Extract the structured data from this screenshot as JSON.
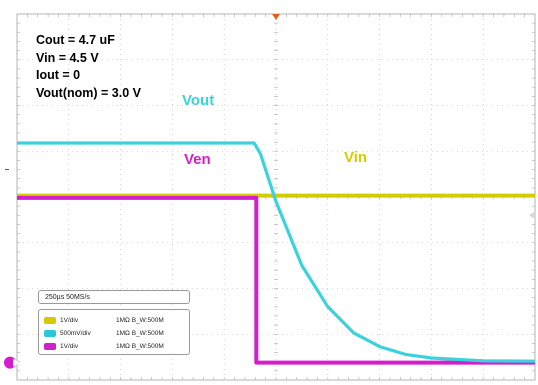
{
  "conditions": {
    "cout": "Cout = 4.7 uF",
    "vin": "Vin = 4.5 V",
    "iout": "Iout = 0",
    "vout_nom": "Vout(nom) = 3.0 V"
  },
  "trace_labels": {
    "vout": "Vout",
    "ven": "Ven",
    "vin": "Vin"
  },
  "timebase": "250µs   50MS/s",
  "channels": [
    {
      "vdiv": "1V/div",
      "impedance": "1MΩ  B_W:500M",
      "color": "#d8c800"
    },
    {
      "vdiv": "500mV/div",
      "impedance": "1MΩ  B_W:500M",
      "color": "#28c8d8"
    },
    {
      "vdiv": "1V/div",
      "impedance": "1MΩ  B_W:500M",
      "color": "#d020c8"
    }
  ],
  "colors": {
    "vout": "#3cd2dc",
    "ven": "#d21ecd",
    "vin": "#d2cc00",
    "grid": "#b4b4b4",
    "trigger_marker": "#e06020"
  },
  "chart_data": {
    "type": "line",
    "title": "",
    "xlabel": "",
    "ylabel": "",
    "xlim": [
      0,
      10
    ],
    "ylim": [
      0,
      8
    ],
    "grid": true,
    "series": [
      {
        "name": "Vout",
        "x": [
          0,
          4.58,
          4.7,
          5,
          5.5,
          6,
          6.5,
          7,
          7.5,
          8,
          9,
          10
        ],
        "y": [
          5.18,
          5.18,
          4.94,
          3.9,
          2.5,
          1.6,
          1.03,
          0.73,
          0.56,
          0.48,
          0.42,
          0.41
        ]
      },
      {
        "name": "Vin",
        "x": [
          0,
          10
        ],
        "y": [
          4.03,
          4.03
        ]
      },
      {
        "name": "Ven",
        "x": [
          0,
          4.62,
          4.62,
          10
        ],
        "y": [
          3.98,
          3.98,
          0.38,
          0.38
        ]
      }
    ]
  }
}
